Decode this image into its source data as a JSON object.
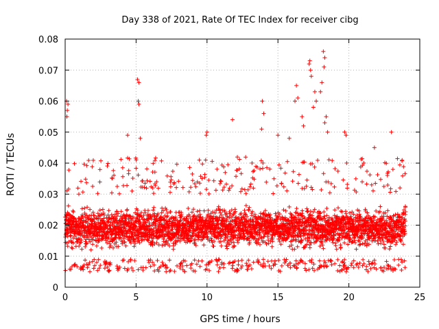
{
  "chart_data": {
    "type": "scatter",
    "title": "Day 338 of 2021, Rate Of TEC Index for receiver cibg",
    "xlabel": "GPS time / hours",
    "ylabel": "ROTI / TECUs",
    "xlim": [
      0,
      25
    ],
    "ylim": [
      0,
      0.08
    ],
    "xticks": [
      "0",
      "5",
      "10",
      "15",
      "20",
      "25"
    ],
    "yticks": [
      "0",
      "0.01",
      "0.02",
      "0.03",
      "0.04",
      "0.05",
      "0.06",
      "0.07",
      "0.08"
    ],
    "grid": true,
    "marker": "+",
    "color": "#ff0000",
    "series": [
      {
        "name": "ROTI",
        "description": "dense scatter of ROTI values over 0-24 h, bulk between 0.005 and 0.03 TECU/s",
        "baseline_band": [
          0.005,
          0.03
        ],
        "x_range": [
          0,
          24
        ],
        "notable_points": [
          [
            0.1,
            0.06
          ],
          [
            0.15,
            0.057
          ],
          [
            0.2,
            0.059
          ],
          [
            0.12,
            0.055
          ],
          [
            5.1,
            0.067
          ],
          [
            5.2,
            0.066
          ],
          [
            5.15,
            0.06
          ],
          [
            5.2,
            0.059
          ],
          [
            4.4,
            0.049
          ],
          [
            5.3,
            0.048
          ],
          [
            10.0,
            0.05
          ],
          [
            9.95,
            0.049
          ],
          [
            11.8,
            0.054
          ],
          [
            13.9,
            0.06
          ],
          [
            14.0,
            0.056
          ],
          [
            13.85,
            0.051
          ],
          [
            15.0,
            0.049
          ],
          [
            15.8,
            0.048
          ],
          [
            16.3,
            0.065
          ],
          [
            16.4,
            0.061
          ],
          [
            16.2,
            0.06
          ],
          [
            16.7,
            0.055
          ],
          [
            16.8,
            0.052
          ],
          [
            17.2,
            0.072
          ],
          [
            17.3,
            0.07
          ],
          [
            17.35,
            0.068
          ],
          [
            17.25,
            0.073
          ],
          [
            17.6,
            0.063
          ],
          [
            17.7,
            0.06
          ],
          [
            17.5,
            0.058
          ],
          [
            18.2,
            0.076
          ],
          [
            18.3,
            0.074
          ],
          [
            18.25,
            0.071
          ],
          [
            18.1,
            0.066
          ],
          [
            18.0,
            0.063
          ],
          [
            18.4,
            0.055
          ],
          [
            18.3,
            0.053
          ],
          [
            18.5,
            0.05
          ],
          [
            19.7,
            0.05
          ],
          [
            19.8,
            0.049
          ],
          [
            21.8,
            0.045
          ],
          [
            23.0,
            0.05
          ]
        ]
      }
    ]
  }
}
